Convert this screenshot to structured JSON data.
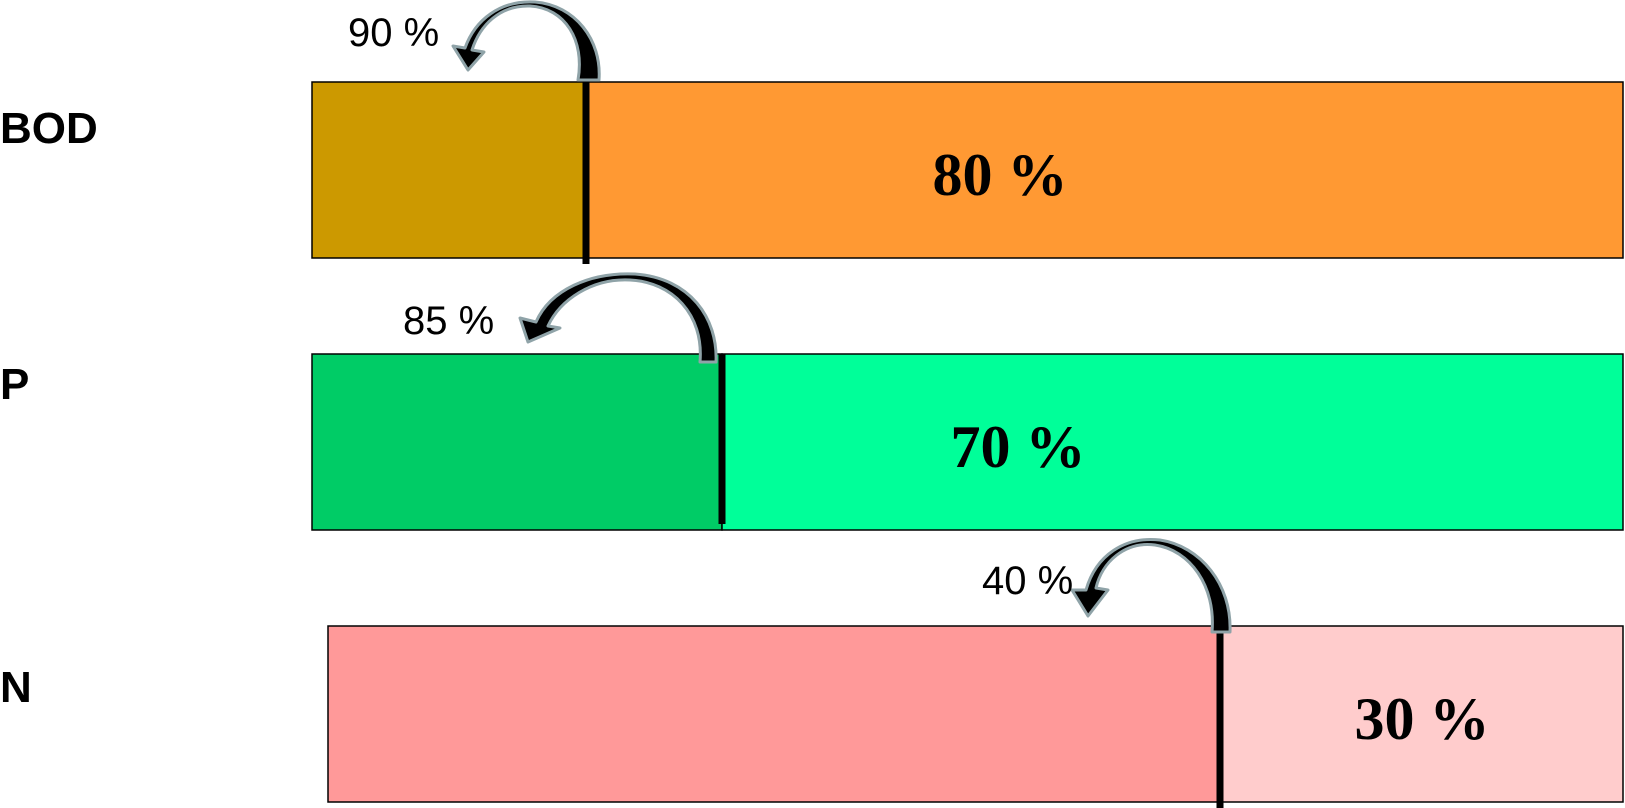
{
  "rows": [
    {
      "label": "BOD",
      "total_value": "80 %",
      "arrow_value": "90 %",
      "split_fraction": 0.21,
      "dark_color": "#cc9900",
      "light_color": "#ff9933"
    },
    {
      "label": "P",
      "total_value": "70 %",
      "arrow_value": "85 %",
      "split_fraction": 0.31,
      "dark_color": "#00cc66",
      "light_color": "#00ff99"
    },
    {
      "label": "N",
      "total_value": "30 %",
      "arrow_value": "40 %",
      "split_fraction": 0.69,
      "dark_color": "#ff9999",
      "light_color": "#ffcccc"
    }
  ]
}
